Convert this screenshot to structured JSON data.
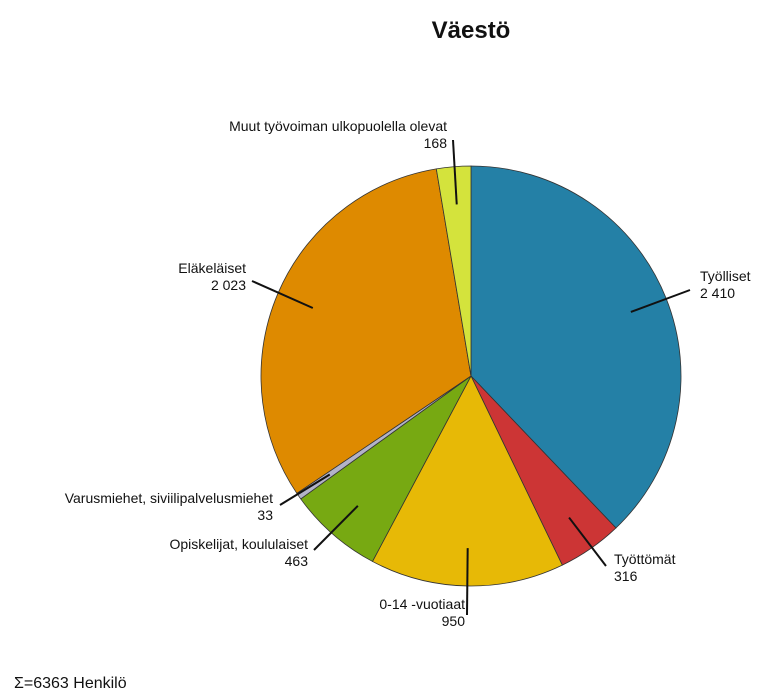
{
  "chart_data": {
    "type": "pie",
    "title": "Väestö",
    "categories": [
      "Työlliset",
      "Työttömät",
      "0-14 -vuotiaat",
      "Opiskelijat, koululaiset",
      "Varusmiehet, siviilipalvelusmiehet",
      "Eläkeläiset",
      "Muut työvoiman ulkopuolella olevat"
    ],
    "values": [
      2410,
      316,
      950,
      463,
      33,
      2023,
      168
    ],
    "value_labels": [
      "2 410",
      "316",
      "950",
      "463",
      "33",
      "2 023",
      "168"
    ],
    "colors": [
      "#2480a6",
      "#cc3535",
      "#e7b906",
      "#77a912",
      "#b3b3c8",
      "#de8a00",
      "#d4e33c"
    ],
    "footnote": "Σ=6363 Henkilö"
  }
}
